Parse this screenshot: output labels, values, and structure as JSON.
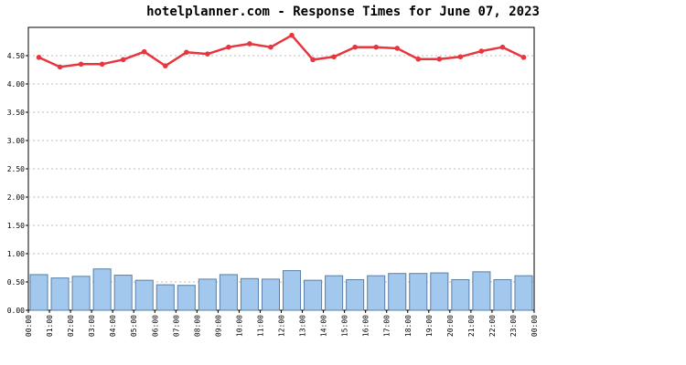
{
  "chart_data": {
    "type": "bar+line",
    "title": "hotelplanner.com - Response Times for June 07, 2023",
    "xlabel": "",
    "ylabel": "",
    "ylim": [
      0,
      5.0
    ],
    "y_ticks": [
      "0.00",
      "0.50",
      "1.00",
      "1.50",
      "2.00",
      "2.50",
      "3.00",
      "3.50",
      "4.00",
      "4.50"
    ],
    "x_ticks": [
      "00:00",
      "01:00",
      "02:00",
      "03:00",
      "04:00",
      "05:00",
      "06:00",
      "07:00",
      "08:00",
      "09:00",
      "10:00",
      "11:00",
      "12:00",
      "13:00",
      "14:00",
      "15:00",
      "16:00",
      "17:00",
      "18:00",
      "19:00",
      "20:00",
      "21:00",
      "22:00",
      "23:00",
      "00:00"
    ],
    "grid": true,
    "colors": {
      "bars": "#a3c8ee",
      "bar_border": "#5b7fa6",
      "line": "#e8363e",
      "grid": "#bbbbbb"
    },
    "series": [
      {
        "type": "bar",
        "values": [
          0.63,
          0.57,
          0.6,
          0.73,
          0.62,
          0.53,
          0.45,
          0.44,
          0.55,
          0.63,
          0.56,
          0.55,
          0.7,
          0.53,
          0.61,
          0.54,
          0.61,
          0.65,
          0.65,
          0.66,
          0.54,
          0.68,
          0.54,
          0.61
        ]
      },
      {
        "type": "line",
        "values": [
          4.47,
          4.3,
          4.35,
          4.35,
          4.43,
          4.57,
          4.32,
          4.56,
          4.53,
          4.65,
          4.71,
          4.65,
          4.86,
          4.43,
          4.48,
          4.65,
          4.65,
          4.63,
          4.44,
          4.44,
          4.48,
          4.58,
          4.65,
          4.47
        ]
      }
    ]
  }
}
